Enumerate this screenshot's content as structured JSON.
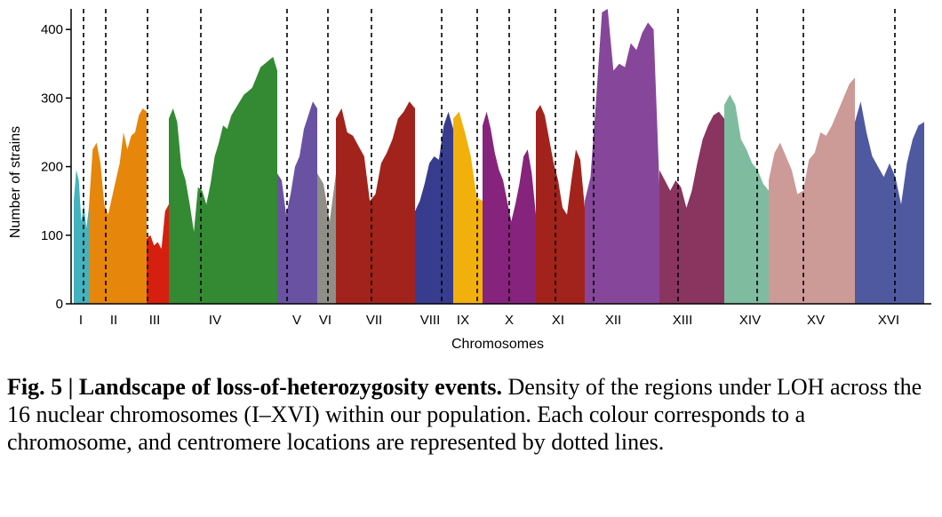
{
  "chart_data": {
    "type": "area",
    "xlabel": "Chromosomes",
    "ylabel": "Number of strains",
    "ylim": [
      0,
      430
    ],
    "yticks": [
      0,
      100,
      200,
      300,
      400
    ],
    "grid": false,
    "series": [
      {
        "label": "I",
        "color": "#43b3c0",
        "values": [
          150,
          195,
          180,
          120,
          145,
          110,
          140
        ]
      },
      {
        "label": "II",
        "color": "#e6860a",
        "values": [
          140,
          225,
          235,
          205,
          145,
          130,
          155,
          180,
          205,
          250,
          225,
          245,
          250,
          275,
          285,
          280
        ]
      },
      {
        "label": "III",
        "color": "#d61f0e",
        "values": [
          95,
          100,
          85,
          90,
          80,
          135,
          145
        ]
      },
      {
        "label": "IV",
        "color": "#338a33",
        "values": [
          270,
          285,
          265,
          200,
          180,
          145,
          105,
          170,
          165,
          145,
          175,
          215,
          235,
          260,
          255,
          275,
          285,
          295,
          305,
          310,
          315,
          330,
          345,
          350,
          355,
          360,
          340
        ]
      },
      {
        "label": "V",
        "color": "#6a52a3",
        "values": [
          190,
          180,
          130,
          160,
          200,
          215,
          255,
          275,
          295,
          285
        ]
      },
      {
        "label": "VI",
        "color": "#8f8f87",
        "values": [
          190,
          175,
          120,
          190
        ]
      },
      {
        "label": "VII",
        "color": "#a2231c",
        "values": [
          270,
          285,
          250,
          245,
          230,
          215,
          150,
          160,
          205,
          220,
          240,
          270,
          280,
          295,
          285
        ]
      },
      {
        "label": "VIII",
        "color": "#383c8e",
        "values": [
          135,
          150,
          175,
          205,
          215,
          210,
          260,
          280,
          255
        ]
      },
      {
        "label": "IX",
        "color": "#f2b00c",
        "values": [
          270,
          280,
          250,
          215,
          155,
          150
        ]
      },
      {
        "label": "X",
        "color": "#86237c",
        "values": [
          260,
          280,
          255,
          220,
          195,
          180,
          150,
          120,
          145,
          175,
          215,
          225,
          190,
          130
        ]
      },
      {
        "label": "XI",
        "color": "#a2231c",
        "values": [
          280,
          290,
          275,
          240,
          205,
          180,
          140,
          130,
          180,
          225,
          210,
          140
        ]
      },
      {
        "label": "XII",
        "color": "#86479a",
        "values": [
          150,
          185,
          300,
          425,
          430,
          340,
          350,
          345,
          380,
          370,
          395,
          410,
          400,
          175
        ]
      },
      {
        "label": "XIII",
        "color": "#8a3460",
        "values": [
          195,
          180,
          165,
          180,
          170,
          140,
          165,
          205,
          240,
          260,
          275,
          280,
          270
        ]
      },
      {
        "label": "XIV",
        "color": "#7fbc9f",
        "values": [
          290,
          305,
          290,
          240,
          225,
          205,
          195,
          175,
          165
        ]
      },
      {
        "label": "XV",
        "color": "#cc9a97",
        "values": [
          180,
          220,
          235,
          215,
          195,
          160,
          165,
          210,
          220,
          250,
          245,
          260,
          280,
          300,
          320,
          330
        ]
      },
      {
        "label": "XVI",
        "color": "#4f59a0",
        "values": [
          265,
          295,
          250,
          215,
          200,
          185,
          205,
          185,
          145,
          205,
          240,
          260,
          265
        ]
      }
    ]
  },
  "caption": {
    "label": "Fig. 5 | Landscape of loss-of-heterozygosity events.",
    "text": " Density of the regions under LOH across the 16 nuclear chromosomes (I–XVI) within our population. Each colour corresponds to a chromosome, and centromere locations are represented by dotted lines."
  }
}
